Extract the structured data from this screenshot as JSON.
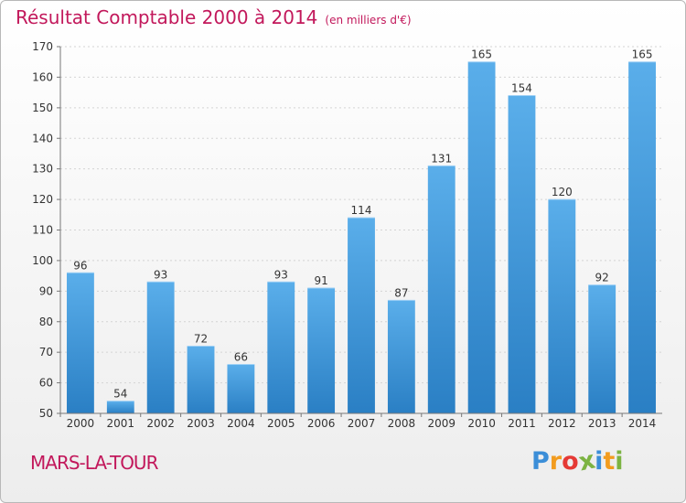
{
  "chart_data": {
    "type": "bar",
    "title": "Résultat Comptable 2000 à 2014",
    "subtitle": "(en milliers d'€)",
    "categories": [
      "2000",
      "2001",
      "2002",
      "2003",
      "2004",
      "2005",
      "2006",
      "2007",
      "2008",
      "2009",
      "2010",
      "2011",
      "2012",
      "2013",
      "2014"
    ],
    "values": [
      96,
      54,
      93,
      72,
      66,
      93,
      91,
      114,
      87,
      131,
      165,
      154,
      120,
      92,
      165
    ],
    "ylim": [
      50,
      170
    ],
    "yticks": [
      50,
      60,
      70,
      80,
      90,
      100,
      110,
      120,
      130,
      140,
      150,
      160,
      170
    ],
    "xlabel": "",
    "ylabel": "",
    "grid": true,
    "bar_color": "#3f97df"
  },
  "location_label": "MARS-LA-TOUR",
  "logo": {
    "letters": [
      "P",
      "r",
      "o",
      "x",
      "i",
      "t",
      "i"
    ],
    "colors": [
      "#3b8ed8",
      "#f29c1f",
      "#e53935",
      "#7cb342",
      "#3b8ed8",
      "#f29c1f",
      "#7cb342"
    ]
  }
}
